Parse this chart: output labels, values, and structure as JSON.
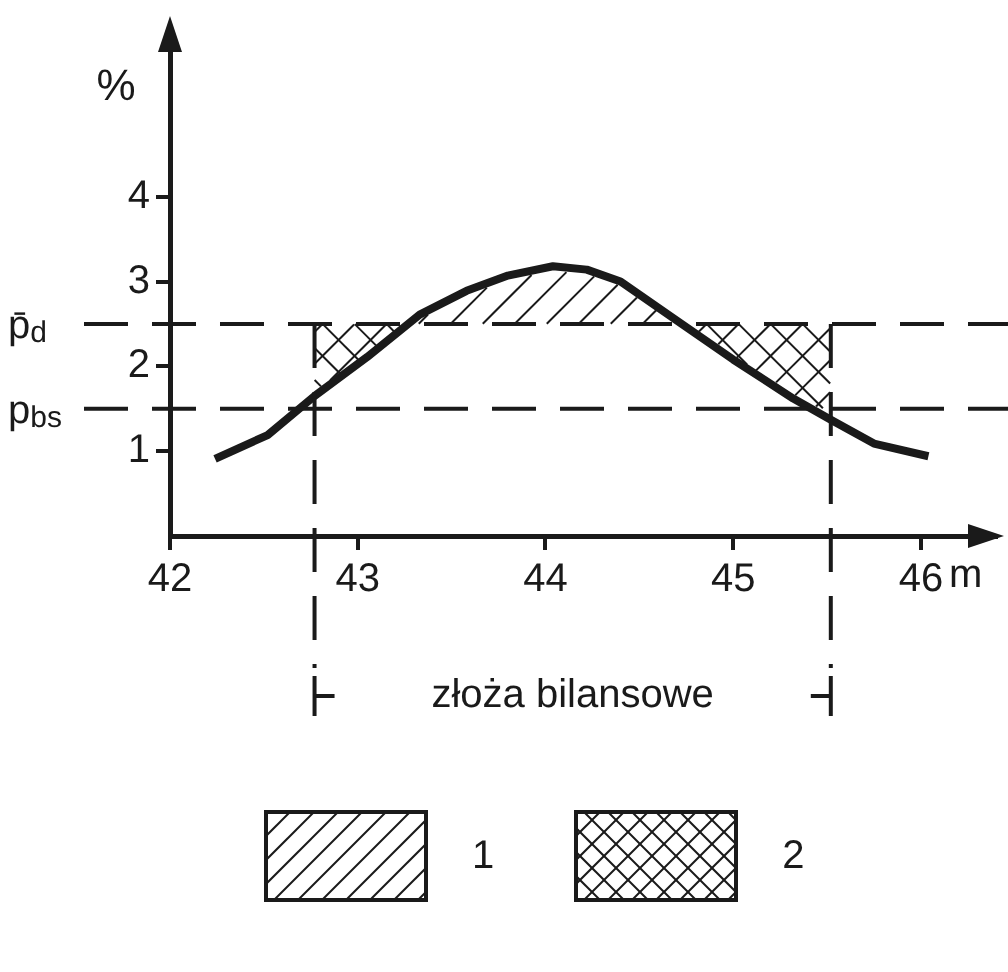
{
  "chart_data": {
    "type": "line",
    "ylabel": "%",
    "xlabel": "m",
    "x": [
      42.24,
      42.52,
      42.77,
      43.05,
      43.33,
      43.58,
      43.8,
      44.04,
      44.22,
      44.4,
      44.68,
      45.0,
      45.32,
      45.52,
      45.75,
      46.04
    ],
    "series": [
      {
        "color": "#1a1a1a",
        "values": [
          0.91,
          1.19,
          1.65,
          2.11,
          2.61,
          2.89,
          3.07,
          3.18,
          3.14,
          3.0,
          2.57,
          2.08,
          1.62,
          1.37,
          1.09,
          0.94
        ]
      }
    ],
    "xlim": [
      42,
      46.4
    ],
    "xticks": [
      42,
      43,
      44,
      45,
      46
    ],
    "ylim": [
      0,
      5.8
    ],
    "yticks": [
      1,
      2,
      3,
      4
    ],
    "ref_lines": [
      {
        "axis": "y",
        "value": 2.5,
        "label": "p̄$_{d}$"
      },
      {
        "axis": "y",
        "value": 1.5,
        "label": "p$_{bs}$"
      },
      {
        "axis": "x",
        "value": 42.77
      },
      {
        "axis": "x",
        "value": 45.52
      }
    ],
    "annotations": [
      "złoża bilansowe",
      "1",
      "2"
    ],
    "grid": false,
    "legend": false,
    "marker": "none",
    "line_style": "solid"
  }
}
